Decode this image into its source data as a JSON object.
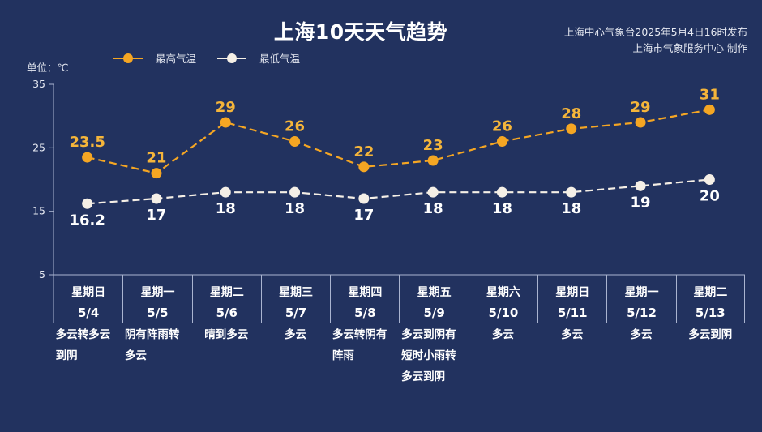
{
  "header": {
    "title": "上海10天天气趋势",
    "source_line1": "上海中心气象台2025年5月4日16时发布",
    "source_line2": "上海市气象服务中心 制作",
    "unit_label": "单位：℃"
  },
  "legend": {
    "high": {
      "label": "最高气温",
      "color": "#f5a623"
    },
    "low": {
      "label": "最低气温",
      "color": "#f5efe6"
    }
  },
  "days": [
    {
      "dow": "星期日",
      "date": "5/4",
      "weather": "多云转多云到阴"
    },
    {
      "dow": "星期一",
      "date": "5/5",
      "weather": "阴有阵雨转多云"
    },
    {
      "dow": "星期二",
      "date": "5/6",
      "weather": "晴到多云"
    },
    {
      "dow": "星期三",
      "date": "5/7",
      "weather": "多云"
    },
    {
      "dow": "星期四",
      "date": "5/8",
      "weather": "多云转阴有阵雨"
    },
    {
      "dow": "星期五",
      "date": "5/9",
      "weather": "多云到阴有短时小雨转多云到阴"
    },
    {
      "dow": "星期六",
      "date": "5/10",
      "weather": "多云"
    },
    {
      "dow": "星期日",
      "date": "5/11",
      "weather": "多云"
    },
    {
      "dow": "星期一",
      "date": "5/12",
      "weather": "多云"
    },
    {
      "dow": "星期二",
      "date": "5/13",
      "weather": "多云到阴"
    }
  ],
  "chart_data": {
    "type": "line",
    "title": "上海10天天气趋势",
    "xlabel": "",
    "ylabel": "单位：℃",
    "categories": [
      "5/4",
      "5/5",
      "5/6",
      "5/7",
      "5/8",
      "5/9",
      "5/10",
      "5/11",
      "5/12",
      "5/13"
    ],
    "series": [
      {
        "name": "最高气温",
        "color": "#f5a623",
        "values": [
          23.5,
          21,
          29,
          26,
          22,
          23,
          26,
          28,
          29,
          31
        ],
        "labels": [
          "23.5",
          "21",
          "29",
          "26",
          "22",
          "23",
          "26",
          "28",
          "29",
          "31"
        ]
      },
      {
        "name": "最低气温",
        "color": "#f5efe6",
        "values": [
          16.2,
          17,
          18,
          18,
          17,
          18,
          18,
          18,
          19,
          20
        ],
        "labels": [
          "16.2",
          "17",
          "18",
          "18",
          "17",
          "18",
          "18",
          "18",
          "19",
          "20"
        ]
      }
    ],
    "yticks": [
      35,
      25,
      15,
      5
    ],
    "ylim": [
      5,
      35
    ],
    "grid": false,
    "legend_position": "top-left",
    "line_style": "dashed"
  }
}
